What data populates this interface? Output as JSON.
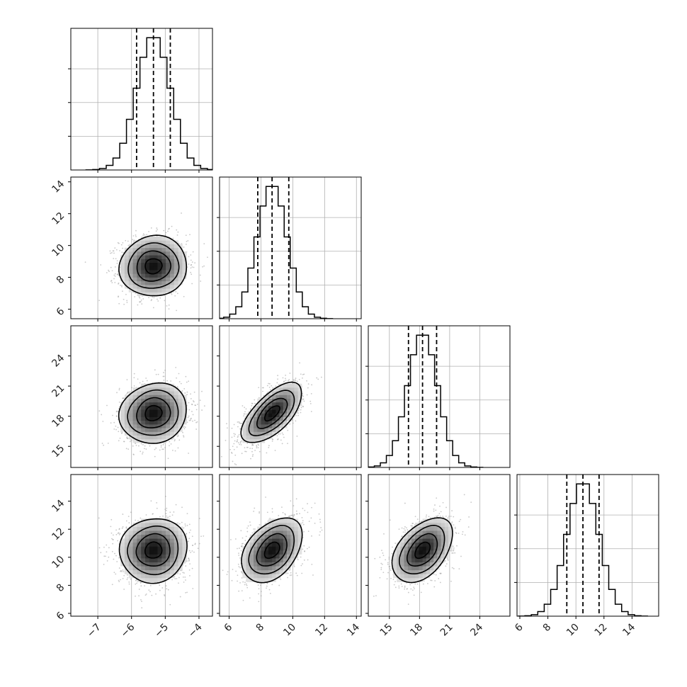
{
  "chart_data": {
    "type": "corner",
    "params": 4,
    "grid": true,
    "quantiles": [
      0.16,
      0.5,
      0.84
    ],
    "axes": [
      {
        "range": [
          -7.8,
          -3.6
        ],
        "ticks": [
          -7,
          -6,
          -5,
          -4
        ],
        "tick_labels": [
          "−7",
          "−6",
          "−5",
          "−4"
        ],
        "mean": -5.35,
        "sd": 0.5,
        "q": [
          -5.85,
          -5.35,
          -4.85
        ]
      },
      {
        "range": [
          5.4,
          14.3
        ],
        "ticks": [
          6,
          8,
          10,
          12,
          14
        ],
        "tick_labels": [
          "6",
          "8",
          "10",
          "12",
          "14"
        ],
        "mean": 8.7,
        "sd": 0.95,
        "q": [
          7.8,
          8.7,
          9.75
        ]
      },
      {
        "range": [
          12.9,
          27.0
        ],
        "ticks": [
          15,
          18,
          21,
          24
        ],
        "tick_labels": [
          "15",
          "18",
          "21",
          "24"
        ],
        "mean": 18.3,
        "sd": 1.5,
        "q": [
          16.9,
          18.3,
          19.7
        ]
      },
      {
        "range": [
          5.8,
          15.9
        ],
        "ticks": [
          6,
          8,
          10,
          12,
          14
        ],
        "tick_labels": [
          "6",
          "8",
          "10",
          "12",
          "14"
        ],
        "mean": 10.5,
        "sd": 1.15,
        "q": [
          9.35,
          10.5,
          11.65
        ]
      }
    ],
    "correlations": [
      {
        "row": 1,
        "col": 0,
        "rho": 0.05
      },
      {
        "row": 2,
        "col": 0,
        "rho": 0.1
      },
      {
        "row": 2,
        "col": 1,
        "rho": 0.65
      },
      {
        "row": 3,
        "col": 0,
        "rho": 0.05
      },
      {
        "row": 3,
        "col": 1,
        "rho": 0.4
      },
      {
        "row": 3,
        "col": 2,
        "rho": 0.45
      }
    ],
    "contour_levels_sigma": [
      0.5,
      1.0,
      1.5,
      2.0
    ],
    "colors": {
      "line": "#000000",
      "grid": "#b0b0b0",
      "points": "#9a9a9a"
    }
  }
}
